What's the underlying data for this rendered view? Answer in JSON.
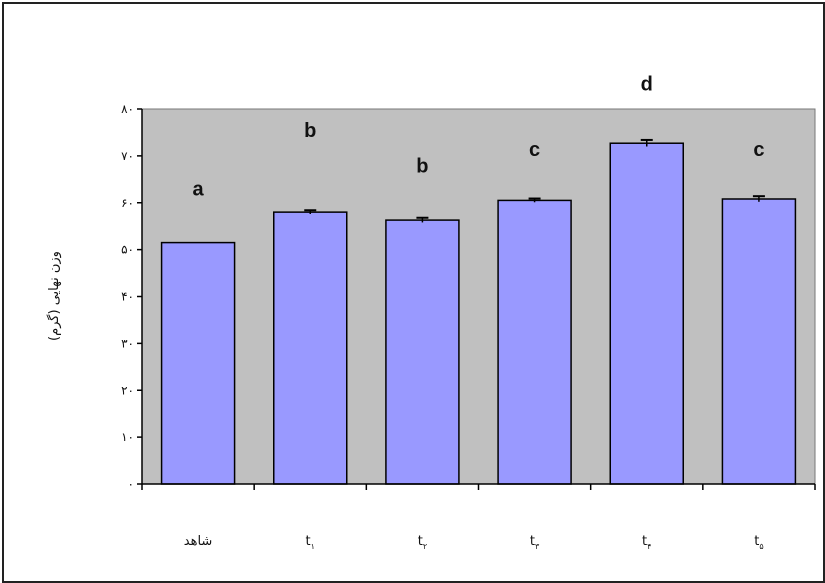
{
  "chart_data": {
    "type": "bar",
    "ylabel": "وزن نهایی (گرم)",
    "ylim": [
      0,
      80
    ],
    "yticks": [
      0,
      10,
      20,
      30,
      40,
      50,
      60,
      70,
      80
    ],
    "ytick_labels": [
      "۰",
      "۱۰",
      "۲۰",
      "۳۰",
      "۴۰",
      "۵۰",
      "۶۰",
      "۷۰",
      "۸۰"
    ],
    "grid": false,
    "background_color": "#c0c0c0",
    "bar_color": "#9999ff",
    "categories": [
      {
        "main": "شاهد",
        "sub": ""
      },
      {
        "main": "t",
        "sub": "۱"
      },
      {
        "main": "t",
        "sub": "۲"
      },
      {
        "main": "t",
        "sub": "۳"
      },
      {
        "main": "t",
        "sub": "۴"
      },
      {
        "main": "t",
        "sub": "۵"
      }
    ],
    "values": [
      51.5,
      58,
      56.3,
      60.5,
      72.7,
      60.8
    ],
    "errors": [
      0,
      0.4,
      0.5,
      0.4,
      0.7,
      0.6
    ],
    "annotations": [
      "a",
      "b",
      "b",
      "c",
      "d",
      "c"
    ],
    "annotation_y": [
      61.5,
      74,
      66.5,
      70,
      84,
      70
    ]
  }
}
